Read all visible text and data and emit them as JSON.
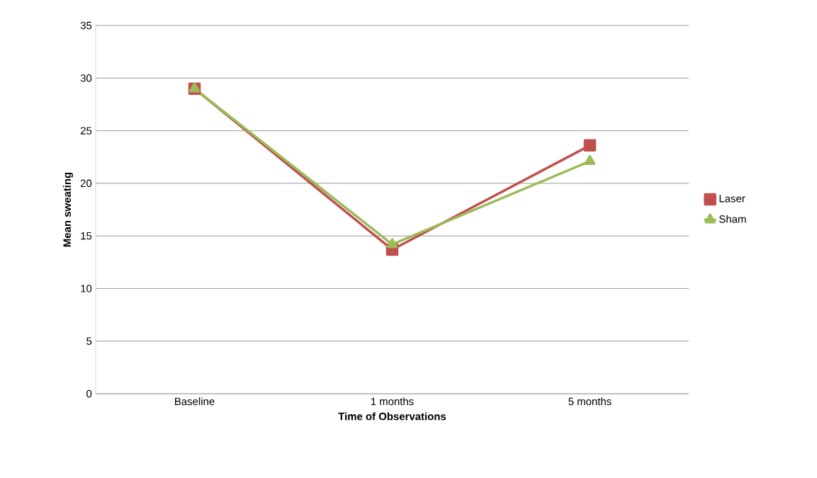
{
  "chart_data": {
    "type": "line",
    "xlabel": "Time of  Observations",
    "ylabel": "Mean sweating",
    "categories": [
      "Baseline",
      "1 months",
      "5 months"
    ],
    "series": [
      {
        "name": "Laser",
        "color": "#c0504d",
        "marker": "square",
        "values": [
          29,
          13.7,
          23.6
        ]
      },
      {
        "name": "Sham",
        "color": "#9bbb59",
        "marker": "triangle",
        "values": [
          29,
          14.2,
          22.1
        ]
      }
    ],
    "ylim": [
      0,
      35
    ],
    "yticks": [
      0,
      5,
      10,
      15,
      20,
      25,
      30,
      35
    ],
    "grid": "y",
    "legend": "right"
  }
}
